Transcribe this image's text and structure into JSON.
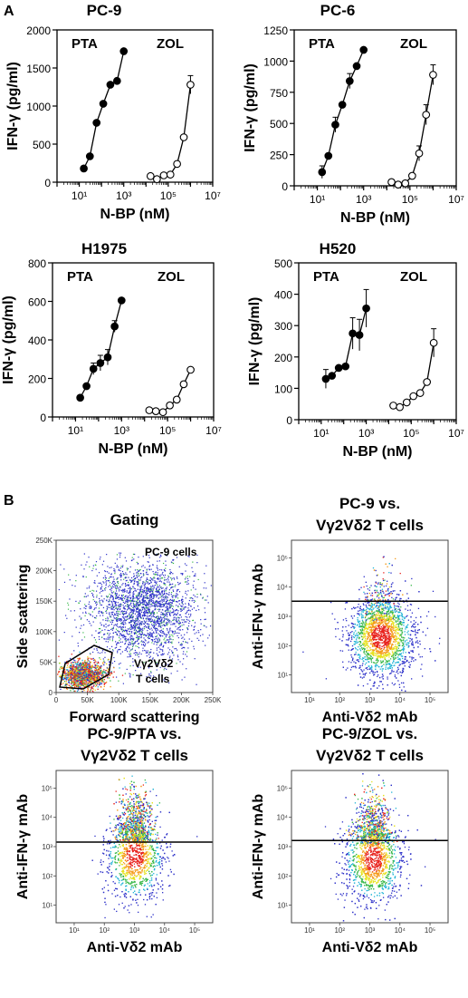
{
  "panels": {
    "a": "A",
    "b": "B"
  },
  "chart_data": [
    {
      "type": "line",
      "title": "PC-9",
      "xlabel": "N-BP (nM)",
      "ylabel": "IFN-γ (pg/ml)",
      "xscale": "log",
      "xlim": [
        1,
        10000000
      ],
      "ylim": [
        0,
        2000
      ],
      "yticks": [
        0,
        500,
        1000,
        1500,
        2000
      ],
      "xticks": [
        "10¹",
        "10³",
        "10⁵",
        "10⁷"
      ],
      "groups": [
        "PTA",
        "ZOL"
      ],
      "series": [
        {
          "name": "PTA",
          "marker": "filled",
          "x": [
            16,
            30,
            60,
            120,
            250,
            500,
            1000
          ],
          "y": [
            180,
            340,
            780,
            1030,
            1280,
            1330,
            1720
          ],
          "err": [
            0,
            0,
            0,
            0,
            0,
            0,
            0
          ]
        },
        {
          "name": "ZOL",
          "marker": "open",
          "x": [
            16000,
            31000,
            63000,
            125000,
            250000,
            500000,
            1000000
          ],
          "y": [
            80,
            40,
            90,
            100,
            240,
            590,
            1280
          ],
          "err": [
            0,
            0,
            0,
            0,
            0,
            0,
            120
          ]
        }
      ]
    },
    {
      "type": "line",
      "title": "PC-6",
      "xlabel": "N-BP (nM)",
      "ylabel": "IFN-γ (pg/ml)",
      "xscale": "log",
      "xlim": [
        1,
        10000000
      ],
      "ylim": [
        0,
        1250
      ],
      "yticks": [
        0,
        250,
        500,
        750,
        1000,
        1250
      ],
      "xticks": [
        "10¹",
        "10³",
        "10⁵",
        "10⁷"
      ],
      "groups": [
        "PTA",
        "ZOL"
      ],
      "series": [
        {
          "name": "PTA",
          "marker": "filled",
          "x": [
            16,
            30,
            60,
            120,
            250,
            500,
            1000
          ],
          "y": [
            110,
            240,
            490,
            650,
            840,
            960,
            1090
          ],
          "err": [
            50,
            0,
            60,
            0,
            60,
            0,
            0
          ]
        },
        {
          "name": "ZOL",
          "marker": "open",
          "x": [
            16000,
            31000,
            63000,
            125000,
            250000,
            500000,
            1000000
          ],
          "y": [
            30,
            10,
            20,
            80,
            260,
            570,
            890
          ],
          "err": [
            0,
            0,
            0,
            0,
            60,
            80,
            80
          ]
        }
      ]
    },
    {
      "type": "line",
      "title": "H1975",
      "xlabel": "N-BP (nM)",
      "ylabel": "IFN-γ (pg/ml)",
      "xscale": "log",
      "xlim": [
        1,
        10000000
      ],
      "ylim": [
        0,
        800
      ],
      "yticks": [
        0,
        200,
        400,
        600,
        800
      ],
      "xticks": [
        "10¹",
        "10³",
        "10⁵",
        "10⁷"
      ],
      "groups": [
        "PTA",
        "ZOL"
      ],
      "series": [
        {
          "name": "PTA",
          "marker": "filled",
          "x": [
            16,
            30,
            60,
            120,
            250,
            500,
            1000
          ],
          "y": [
            100,
            160,
            250,
            280,
            310,
            470,
            605
          ],
          "err": [
            0,
            0,
            30,
            40,
            40,
            30,
            0
          ]
        },
        {
          "name": "ZOL",
          "marker": "open",
          "x": [
            16000,
            31000,
            63000,
            125000,
            250000,
            500000,
            1000000
          ],
          "y": [
            35,
            30,
            25,
            60,
            90,
            170,
            245
          ],
          "err": [
            0,
            0,
            0,
            0,
            0,
            0,
            0
          ]
        }
      ]
    },
    {
      "type": "line",
      "title": "H520",
      "xlabel": "N-BP (nM)",
      "ylabel": "IFN-γ (pg/ml)",
      "xscale": "log",
      "xlim": [
        1,
        10000000
      ],
      "ylim": [
        0,
        500
      ],
      "yticks": [
        0,
        100,
        200,
        300,
        400,
        500
      ],
      "xticks": [
        "10¹",
        "10³",
        "10⁵",
        "10⁷"
      ],
      "groups": [
        "PTA",
        "ZOL"
      ],
      "series": [
        {
          "name": "PTA",
          "marker": "filled",
          "x": [
            16,
            30,
            60,
            120,
            250,
            500,
            1000
          ],
          "y": [
            130,
            140,
            165,
            170,
            275,
            270,
            355
          ],
          "err": [
            30,
            0,
            0,
            0,
            50,
            50,
            60
          ]
        },
        {
          "name": "ZOL",
          "marker": "open",
          "x": [
            16000,
            31000,
            63000,
            125000,
            250000,
            500000,
            1000000
          ],
          "y": [
            45,
            40,
            55,
            75,
            85,
            120,
            245
          ],
          "err": [
            0,
            0,
            0,
            0,
            0,
            0,
            45
          ]
        }
      ]
    }
  ],
  "flow": [
    {
      "title_lines": [
        "Gating",
        ""
      ],
      "xlabel": "Forward scattering",
      "ylabel": "Side scattering",
      "xticks": [
        "0",
        "50K",
        "100K",
        "150K",
        "200K",
        "250K"
      ],
      "yticks": [
        "0",
        "50K",
        "100K",
        "150K",
        "200K",
        "250K"
      ],
      "annotations": [
        "PC-9 cells",
        "Vγ2Vδ2",
        "T cells"
      ]
    },
    {
      "title_lines": [
        "PC-9 vs.",
        "Vγ2Vδ2 T cells"
      ],
      "xlabel": "Anti-Vδ2 mAb",
      "ylabel": "Anti-IFN-γ mAb",
      "xticks": [
        "10¹",
        "10²",
        "10³",
        "10⁴",
        "10⁵"
      ],
      "yticks": [
        "10¹",
        "10²",
        "10³",
        "10⁴",
        "10⁵"
      ]
    },
    {
      "title_lines": [
        "PC-9/PTA vs.",
        "Vγ2Vδ2 T cells"
      ],
      "xlabel": "Anti-Vδ2 mAb",
      "ylabel": "Anti-IFN-γ mAb",
      "xticks": [
        "10¹",
        "10²",
        "10³",
        "10⁴",
        "10⁵"
      ],
      "yticks": [
        "10¹",
        "10²",
        "10³",
        "10⁴",
        "10⁵"
      ]
    },
    {
      "title_lines": [
        "PC-9/ZOL vs.",
        "Vγ2Vδ2 T cells"
      ],
      "xlabel": "Anti-Vδ2 mAb",
      "ylabel": "Anti-IFN-γ mAb",
      "xticks": [
        "10¹",
        "10²",
        "10³",
        "10⁴",
        "10⁵"
      ],
      "yticks": [
        "10¹",
        "10²",
        "10³",
        "10⁴",
        "10⁵"
      ]
    }
  ]
}
